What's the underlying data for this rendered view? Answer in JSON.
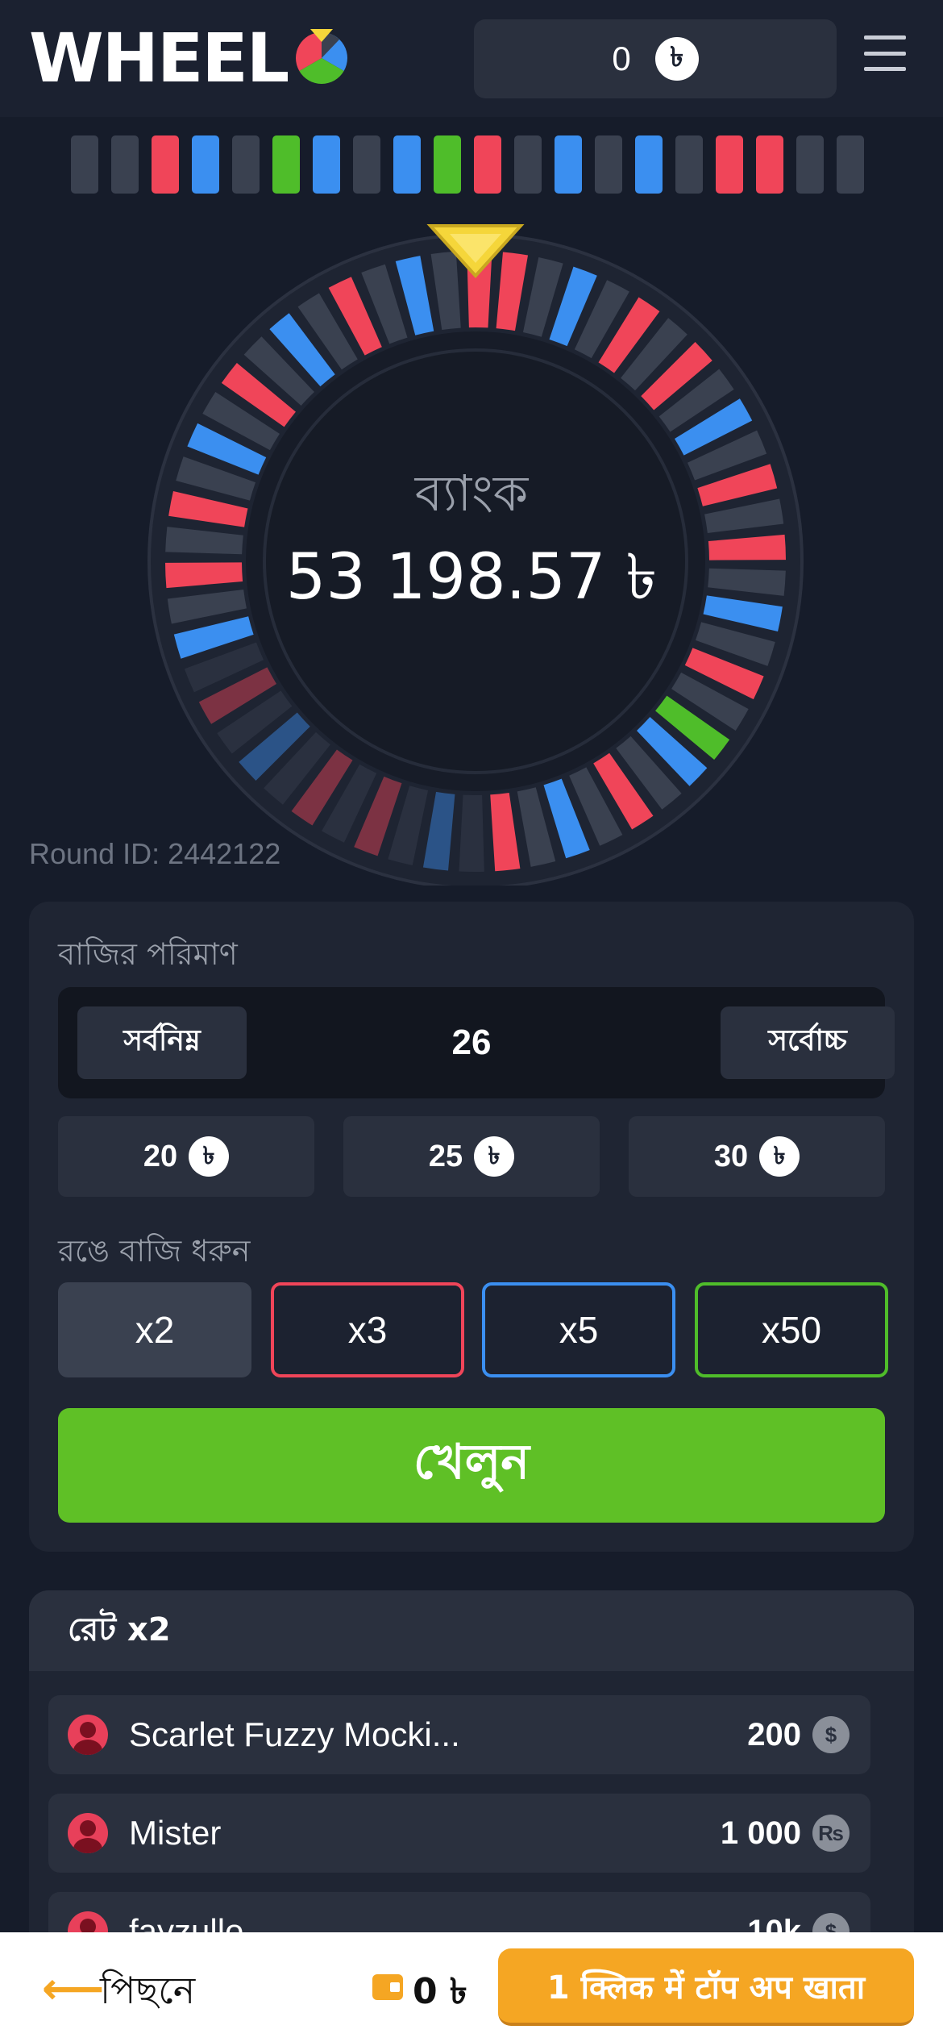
{
  "header": {
    "logo_text": "WHEEL",
    "balance": "0",
    "currency_symbol": "৳",
    "menu_icon": "hamburger-menu-icon"
  },
  "history_colors": [
    "#3a4150",
    "#3a4150",
    "#f04559",
    "#3b8ff0",
    "#3a4150",
    "#4fbd2a",
    "#3b8ff0",
    "#3a4150",
    "#3b8ff0",
    "#4fbd2a",
    "#f04559",
    "#3a4150",
    "#3b8ff0",
    "#3a4150",
    "#3b8ff0",
    "#3a4150",
    "#f04559",
    "#f04559",
    "#3a4150",
    "#3a4150"
  ],
  "wheel": {
    "bank_label": "ব্যাংক",
    "bank_value": "53 198.57 ৳",
    "pointer_color": "#f5d63a"
  },
  "round": {
    "label": "Round ID: 2442122"
  },
  "bet": {
    "amount_label": "বাজির পরিমাণ",
    "min_label": "সর্বনিম্ন",
    "max_label": "সর্বোচ্চ",
    "amount_value": "26",
    "quick_amounts": [
      "20",
      "25",
      "30"
    ],
    "color_label": "রঙে বাজি ধরুন",
    "multipliers": [
      {
        "label": "x2",
        "color": "#3a4150"
      },
      {
        "label": "x3",
        "color": "#f04559"
      },
      {
        "label": "x5",
        "color": "#3b8ff0"
      },
      {
        "label": "x50",
        "color": "#4fbd2a"
      }
    ],
    "play_label": "খেলুন"
  },
  "rate": {
    "title": "রেট x2",
    "players": [
      {
        "name": "Scarlet Fuzzy Mocki...",
        "amount": "200",
        "currency_icon": "$"
      },
      {
        "name": "Mister",
        "amount": "1 000",
        "currency_icon": "₨"
      },
      {
        "name": "fayzullo",
        "amount": "10k",
        "currency_icon": "$"
      }
    ]
  },
  "bottom_bar": {
    "back_label": "পিছনে",
    "balance": "0 ৳",
    "topup_label": "1 क्लिक में टॉप अप खाता"
  }
}
